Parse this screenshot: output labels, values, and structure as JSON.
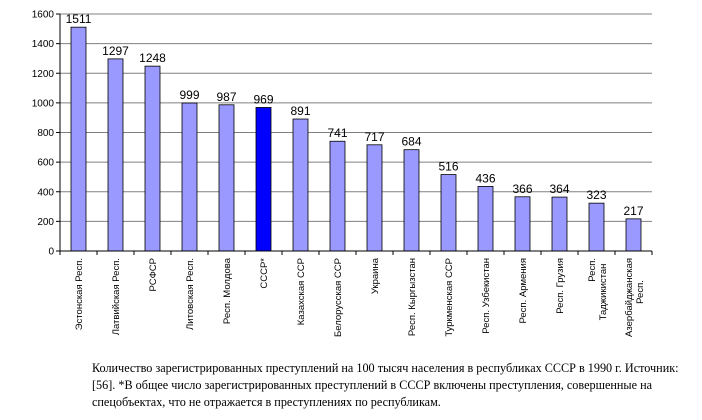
{
  "chart_data": {
    "type": "bar",
    "categories": [
      "Эстонская Респ.",
      "Латвийская Респ.",
      "РСФСР",
      "Литовская Респ.",
      "Респ. Молдова",
      "СССР*",
      "Казахская ССР",
      "Белорусская ССР",
      "Украина",
      "Респ. Кыргызстан",
      "Туркменская ССР",
      "Респ. Узбекистан",
      "Респ. Армения",
      "Респ. Грузия",
      "Респ. Таджикистан",
      "Азербайджанская Респ."
    ],
    "values": [
      1511,
      1297,
      1248,
      999,
      987,
      969,
      891,
      741,
      717,
      684,
      516,
      436,
      366,
      364,
      323,
      217
    ],
    "highlight_index": 5,
    "ylim": [
      0,
      1600
    ],
    "yticks": [
      0,
      200,
      400,
      600,
      800,
      1000,
      1200,
      1400,
      1600
    ],
    "grid": true,
    "colors": {
      "bar": "#9999ff",
      "highlight": "#0000ff",
      "edge": "#000000",
      "grid": "#808080"
    }
  },
  "caption": "Количество зарегистрированных преступлений на 100 тысяч населения в республиках СССР в 1990 г.  Источник:  [56]. *В общее число зарегистрированных преступлений в СССР включены преступления, совершенные на спецобъектах, что не отражается в преступлениях по республикам."
}
